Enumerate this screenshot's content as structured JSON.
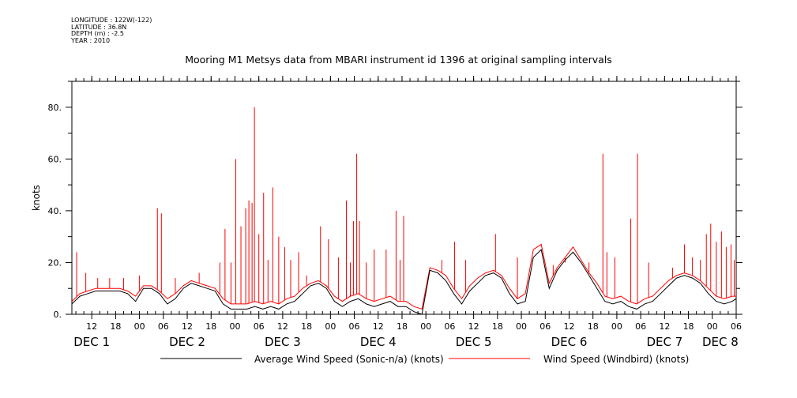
{
  "meta": {
    "longitude": "LONGITUDE : 122W(-122)",
    "latitude": "LATITUDE : 36.8N",
    "depth": "DEPTH (m) : -2.5",
    "year": "YEAR : 2010"
  },
  "chart_data": {
    "type": "line",
    "title": "Mooring M1 Metsys data from MBARI instrument id 1396 at original sampling intervals",
    "ylabel": "knots",
    "xlabel": "",
    "ylim": [
      0,
      90
    ],
    "x_unit": "hours since DEC 1 00:00 (2010)",
    "xlim": [
      7,
      174
    ],
    "yticks": [
      0,
      20,
      40,
      60,
      80
    ],
    "ytick_labels": [
      "0.",
      "20.",
      "40.",
      "60.",
      "80."
    ],
    "hour_ticks": [
      {
        "h": 12,
        "label": "12"
      },
      {
        "h": 18,
        "label": "18"
      },
      {
        "h": 24,
        "label": "00"
      },
      {
        "h": 30,
        "label": "06"
      },
      {
        "h": 36,
        "label": "12"
      },
      {
        "h": 42,
        "label": "18"
      },
      {
        "h": 48,
        "label": "00"
      },
      {
        "h": 54,
        "label": "06"
      },
      {
        "h": 60,
        "label": "12"
      },
      {
        "h": 66,
        "label": "18"
      },
      {
        "h": 72,
        "label": "00"
      },
      {
        "h": 78,
        "label": "06"
      },
      {
        "h": 84,
        "label": "12"
      },
      {
        "h": 90,
        "label": "18"
      },
      {
        "h": 96,
        "label": "00"
      },
      {
        "h": 102,
        "label": "06"
      },
      {
        "h": 108,
        "label": "12"
      },
      {
        "h": 114,
        "label": "18"
      },
      {
        "h": 120,
        "label": "00"
      },
      {
        "h": 126,
        "label": "06"
      },
      {
        "h": 132,
        "label": "12"
      },
      {
        "h": 138,
        "label": "18"
      },
      {
        "h": 144,
        "label": "00"
      },
      {
        "h": 150,
        "label": "06"
      },
      {
        "h": 156,
        "label": "12"
      },
      {
        "h": 162,
        "label": "18"
      },
      {
        "h": 168,
        "label": "00"
      },
      {
        "h": 174,
        "label": "06"
      }
    ],
    "day_labels": [
      {
        "h": 12,
        "label": "DEC  1"
      },
      {
        "h": 36,
        "label": "DEC  2"
      },
      {
        "h": 60,
        "label": "DEC  3"
      },
      {
        "h": 84,
        "label": "DEC  4"
      },
      {
        "h": 108,
        "label": "DEC  5"
      },
      {
        "h": 132,
        "label": "DEC  6"
      },
      {
        "h": 156,
        "label": "DEC  7"
      },
      {
        "h": 170,
        "label": "DEC  8"
      }
    ],
    "legend_position": "bottom",
    "series": [
      {
        "name": "Average Wind Speed (Sonic-n/a) (knots)",
        "color": "#000000",
        "x": [
          7,
          9,
          11,
          13,
          15,
          17,
          19,
          21,
          23,
          25,
          27,
          29,
          31,
          33,
          35,
          37,
          39,
          41,
          43,
          45,
          47,
          49,
          51,
          53,
          55,
          57,
          59,
          61,
          63,
          65,
          67,
          69,
          71,
          73,
          75,
          77,
          79,
          81,
          83,
          85,
          87,
          89,
          91,
          93,
          95,
          97,
          99,
          101,
          103,
          105,
          107,
          109,
          111,
          113,
          115,
          117,
          119,
          121,
          123,
          125,
          127,
          129,
          131,
          133,
          135,
          137,
          139,
          141,
          143,
          145,
          147,
          149,
          151,
          153,
          155,
          157,
          159,
          161,
          163,
          165,
          167,
          169,
          171,
          173,
          174
        ],
        "values": [
          4,
          7,
          8,
          9,
          9,
          9,
          9,
          8,
          5,
          10,
          10,
          8,
          4,
          6,
          10,
          12,
          11,
          10,
          9,
          4,
          2,
          2,
          2,
          3,
          2,
          3,
          2,
          4,
          5,
          8,
          11,
          12,
          10,
          5,
          3,
          5,
          6,
          4,
          3,
          4,
          5,
          3,
          3,
          1,
          0,
          17,
          16,
          13,
          8,
          4,
          9,
          12,
          15,
          16,
          14,
          8,
          4,
          5,
          22,
          25,
          10,
          17,
          21,
          24,
          20,
          15,
          10,
          5,
          4,
          5,
          3,
          2,
          4,
          5,
          8,
          11,
          14,
          15,
          14,
          12,
          8,
          5,
          4,
          5,
          6
        ]
      },
      {
        "name": "Wind Speed (Windbird) (knots)",
        "color": "#ff0000",
        "x": [
          7,
          9,
          11,
          13,
          15,
          17,
          19,
          21,
          23,
          25,
          27,
          29,
          31,
          33,
          35,
          37,
          39,
          41,
          43,
          45,
          47,
          49,
          51,
          53,
          55,
          57,
          59,
          61,
          63,
          65,
          67,
          69,
          71,
          73,
          75,
          77,
          79,
          81,
          83,
          85,
          87,
          89,
          91,
          93,
          95,
          97,
          99,
          101,
          103,
          105,
          107,
          109,
          111,
          113,
          115,
          117,
          119,
          121,
          123,
          125,
          127,
          129,
          131,
          133,
          135,
          137,
          139,
          141,
          143,
          145,
          147,
          149,
          151,
          153,
          155,
          157,
          159,
          161,
          163,
          165,
          167,
          169,
          171,
          173,
          174
        ],
        "values": [
          5,
          8,
          9,
          10,
          10,
          10,
          10,
          9,
          7,
          11,
          11,
          9,
          6,
          8,
          11,
          13,
          12,
          11,
          10,
          6,
          4,
          4,
          4,
          5,
          4,
          5,
          4,
          6,
          7,
          10,
          12,
          13,
          11,
          7,
          5,
          7,
          8,
          6,
          5,
          6,
          7,
          5,
          5,
          3,
          2,
          18,
          17,
          15,
          10,
          6,
          11,
          14,
          16,
          17,
          15,
          10,
          6,
          8,
          25,
          27,
          12,
          18,
          22,
          26,
          21,
          16,
          12,
          7,
          6,
          7,
          5,
          4,
          6,
          7,
          10,
          13,
          15,
          16,
          15,
          13,
          10,
          7,
          6,
          7,
          7
        ],
        "spikes": [
          {
            "x": 8.2,
            "y": 24
          },
          {
            "x": 10.5,
            "y": 16
          },
          {
            "x": 13.5,
            "y": 14
          },
          {
            "x": 16.5,
            "y": 14
          },
          {
            "x": 20,
            "y": 14
          },
          {
            "x": 24,
            "y": 15
          },
          {
            "x": 28.5,
            "y": 41
          },
          {
            "x": 29.5,
            "y": 39
          },
          {
            "x": 33,
            "y": 14
          },
          {
            "x": 39,
            "y": 16
          },
          {
            "x": 44.2,
            "y": 20
          },
          {
            "x": 45.5,
            "y": 33
          },
          {
            "x": 47,
            "y": 20
          },
          {
            "x": 48.2,
            "y": 60
          },
          {
            "x": 49.5,
            "y": 34
          },
          {
            "x": 50.7,
            "y": 41
          },
          {
            "x": 51.5,
            "y": 44
          },
          {
            "x": 52.3,
            "y": 43
          },
          {
            "x": 52.9,
            "y": 80
          },
          {
            "x": 54,
            "y": 31
          },
          {
            "x": 55.2,
            "y": 47
          },
          {
            "x": 56.3,
            "y": 21
          },
          {
            "x": 57.5,
            "y": 49
          },
          {
            "x": 59,
            "y": 30
          },
          {
            "x": 60.5,
            "y": 26
          },
          {
            "x": 62,
            "y": 21
          },
          {
            "x": 64,
            "y": 24
          },
          {
            "x": 66,
            "y": 15
          },
          {
            "x": 69.5,
            "y": 34
          },
          {
            "x": 71.5,
            "y": 29
          },
          {
            "x": 74,
            "y": 22
          },
          {
            "x": 76,
            "y": 44
          },
          {
            "x": 77,
            "y": 20
          },
          {
            "x": 77.8,
            "y": 36
          },
          {
            "x": 78.6,
            "y": 62
          },
          {
            "x": 79.3,
            "y": 36
          },
          {
            "x": 81,
            "y": 20
          },
          {
            "x": 83,
            "y": 25
          },
          {
            "x": 86,
            "y": 25
          },
          {
            "x": 88.5,
            "y": 40
          },
          {
            "x": 89.5,
            "y": 21
          },
          {
            "x": 90.4,
            "y": 38
          },
          {
            "x": 100,
            "y": 21
          },
          {
            "x": 103.2,
            "y": 28
          },
          {
            "x": 106,
            "y": 21
          },
          {
            "x": 113.5,
            "y": 31
          },
          {
            "x": 119,
            "y": 22
          },
          {
            "x": 128,
            "y": 19
          },
          {
            "x": 131,
            "y": 20
          },
          {
            "x": 137,
            "y": 20
          },
          {
            "x": 140.5,
            "y": 62
          },
          {
            "x": 141.5,
            "y": 24
          },
          {
            "x": 143.5,
            "y": 22
          },
          {
            "x": 147.5,
            "y": 37
          },
          {
            "x": 149.2,
            "y": 62
          },
          {
            "x": 152,
            "y": 20
          },
          {
            "x": 158,
            "y": 18
          },
          {
            "x": 161,
            "y": 27
          },
          {
            "x": 163,
            "y": 22
          },
          {
            "x": 165,
            "y": 21
          },
          {
            "x": 166.5,
            "y": 31
          },
          {
            "x": 167.6,
            "y": 35
          },
          {
            "x": 169,
            "y": 28
          },
          {
            "x": 170.3,
            "y": 32
          },
          {
            "x": 171.5,
            "y": 26
          },
          {
            "x": 172.7,
            "y": 27
          },
          {
            "x": 173.5,
            "y": 21
          }
        ]
      }
    ]
  }
}
